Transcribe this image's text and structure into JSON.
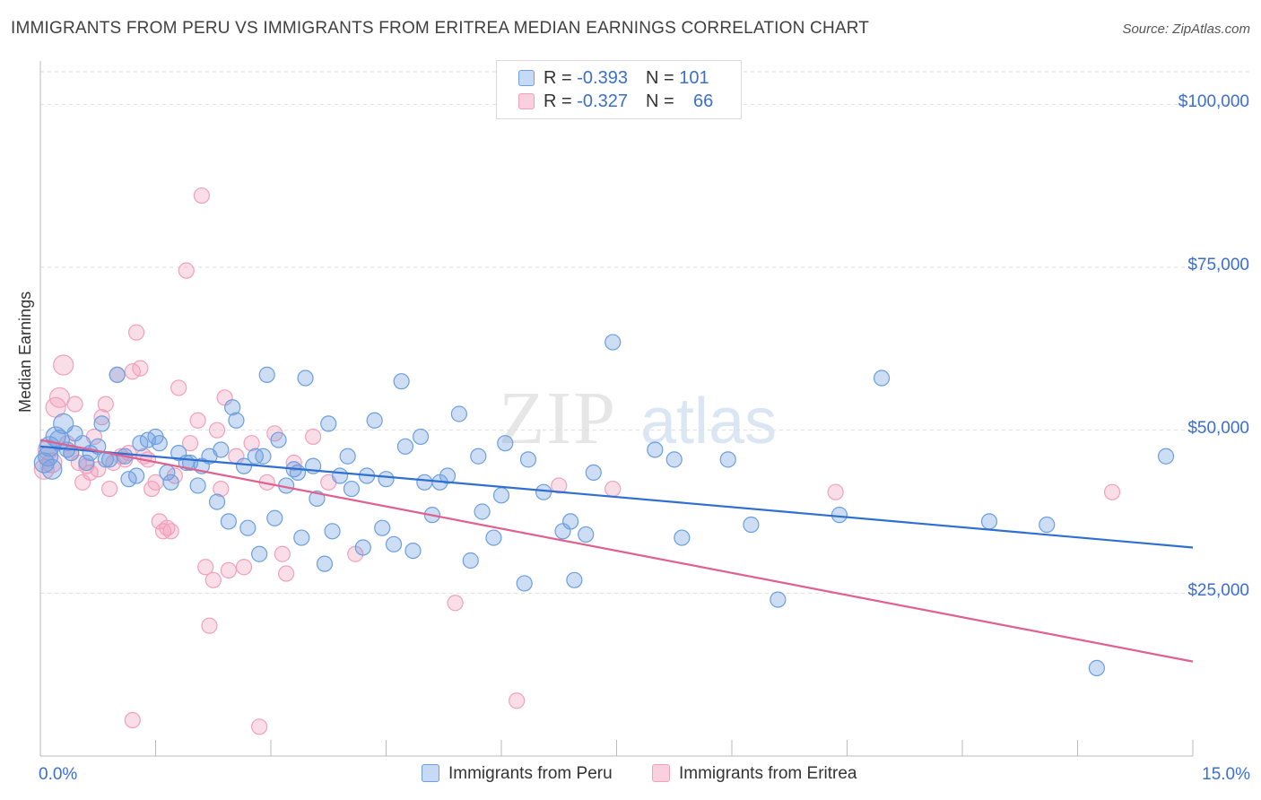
{
  "title": "IMMIGRANTS FROM PERU VS IMMIGRANTS FROM ERITREA MEDIAN EARNINGS CORRELATION CHART",
  "source": "Source: ZipAtlas.com",
  "watermark": "ZIPatlas",
  "legend": {
    "rows": [
      {
        "r_label": "R = ",
        "r_value": "-0.393",
        "n_label": "N = ",
        "n_value": "101"
      },
      {
        "r_label": "R = ",
        "r_value": "-0.327",
        "n_label": "N = ",
        "n_value": "66"
      }
    ]
  },
  "chart_data": {
    "type": "scatter",
    "title": "IMMIGRANTS FROM PERU VS IMMIGRANTS FROM ERITREA MEDIAN EARNINGS CORRELATION CHART",
    "xlabel": "",
    "ylabel": "Median Earnings",
    "xlim": [
      0,
      15
    ],
    "ylim": [
      0,
      105000
    ],
    "x_tick_labels": [
      "0.0%",
      "15.0%"
    ],
    "y_ticks": [
      25000,
      50000,
      75000,
      100000
    ],
    "y_tick_labels": [
      "$25,000",
      "$50,000",
      "$75,000",
      "$100,000"
    ],
    "grid": "horizontal dashed",
    "legend_position": "top-center",
    "colors": {
      "peru": "#6c9fe0",
      "eritrea": "#f1a0ba",
      "peru_line": "#2e6fd1",
      "eritrea_line": "#e0608f"
    },
    "series": [
      {
        "name": "Immigrants from Peru",
        "r": -0.393,
        "n": 101,
        "trend": {
          "x": [
            0,
            15
          ],
          "y": [
            47500,
            32000
          ]
        },
        "points": [
          [
            0.1,
            46000
          ],
          [
            0.15,
            44000
          ],
          [
            0.2,
            49000
          ],
          [
            0.3,
            51000
          ],
          [
            0.35,
            47000
          ],
          [
            0.45,
            49500
          ],
          [
            0.55,
            48000
          ],
          [
            0.65,
            46500
          ],
          [
            0.75,
            47500
          ],
          [
            0.8,
            51000
          ],
          [
            0.9,
            45500
          ],
          [
            1.0,
            58500
          ],
          [
            1.1,
            46000
          ],
          [
            1.15,
            42500
          ],
          [
            1.25,
            43000
          ],
          [
            1.3,
            48000
          ],
          [
            1.4,
            48500
          ],
          [
            1.5,
            49000
          ],
          [
            1.55,
            48000
          ],
          [
            1.65,
            43500
          ],
          [
            1.7,
            42000
          ],
          [
            1.8,
            46500
          ],
          [
            1.9,
            45000
          ],
          [
            1.95,
            45000
          ],
          [
            2.05,
            41500
          ],
          [
            2.1,
            44500
          ],
          [
            2.2,
            46000
          ],
          [
            2.3,
            39000
          ],
          [
            2.35,
            47000
          ],
          [
            2.45,
            36000
          ],
          [
            2.5,
            53500
          ],
          [
            2.55,
            51500
          ],
          [
            2.65,
            44500
          ],
          [
            2.7,
            35000
          ],
          [
            2.8,
            46000
          ],
          [
            2.85,
            31000
          ],
          [
            2.9,
            46000
          ],
          [
            2.95,
            58500
          ],
          [
            3.05,
            36500
          ],
          [
            3.1,
            48500
          ],
          [
            3.2,
            41500
          ],
          [
            3.3,
            44000
          ],
          [
            3.35,
            43500
          ],
          [
            3.4,
            33500
          ],
          [
            3.45,
            58000
          ],
          [
            3.55,
            44500
          ],
          [
            3.6,
            39500
          ],
          [
            3.7,
            29500
          ],
          [
            3.75,
            51000
          ],
          [
            3.8,
            34500
          ],
          [
            3.9,
            43000
          ],
          [
            4.0,
            46000
          ],
          [
            4.05,
            41000
          ],
          [
            4.2,
            32000
          ],
          [
            4.25,
            43000
          ],
          [
            4.35,
            51500
          ],
          [
            4.45,
            35000
          ],
          [
            4.5,
            42500
          ],
          [
            4.6,
            32500
          ],
          [
            4.7,
            57500
          ],
          [
            4.75,
            47500
          ],
          [
            4.85,
            31500
          ],
          [
            4.95,
            49000
          ],
          [
            5.0,
            42000
          ],
          [
            5.1,
            37000
          ],
          [
            5.2,
            42000
          ],
          [
            5.3,
            43000
          ],
          [
            5.45,
            52500
          ],
          [
            5.6,
            30000
          ],
          [
            5.7,
            46000
          ],
          [
            5.75,
            37500
          ],
          [
            5.9,
            33500
          ],
          [
            6.0,
            40000
          ],
          [
            6.05,
            48000
          ],
          [
            6.3,
            26500
          ],
          [
            6.35,
            45500
          ],
          [
            6.55,
            40500
          ],
          [
            6.8,
            34500
          ],
          [
            6.9,
            36000
          ],
          [
            6.95,
            27000
          ],
          [
            7.1,
            34000
          ],
          [
            7.2,
            43500
          ],
          [
            7.45,
            63500
          ],
          [
            8.0,
            47000
          ],
          [
            8.25,
            45500
          ],
          [
            8.35,
            33500
          ],
          [
            8.95,
            45500
          ],
          [
            9.25,
            35500
          ],
          [
            9.6,
            24000
          ],
          [
            10.4,
            37000
          ],
          [
            10.95,
            58000
          ],
          [
            12.35,
            36000
          ],
          [
            13.1,
            35500
          ],
          [
            13.75,
            13500
          ],
          [
            14.65,
            46000
          ],
          [
            0.05,
            45000
          ],
          [
            0.12,
            47500
          ],
          [
            0.25,
            48500
          ],
          [
            0.4,
            46500
          ],
          [
            0.6,
            45000
          ],
          [
            0.85,
            45500
          ]
        ]
      },
      {
        "name": "Immigrants from Eritrea",
        "r": -0.327,
        "n": 66,
        "trend": {
          "x": [
            0,
            15
          ],
          "y": [
            48500,
            14500
          ]
        },
        "points": [
          [
            0.05,
            44000
          ],
          [
            0.1,
            47000
          ],
          [
            0.15,
            45000
          ],
          [
            0.2,
            53500
          ],
          [
            0.25,
            55000
          ],
          [
            0.3,
            60000
          ],
          [
            0.35,
            48000
          ],
          [
            0.4,
            46500
          ],
          [
            0.45,
            54000
          ],
          [
            0.5,
            45000
          ],
          [
            0.55,
            42000
          ],
          [
            0.6,
            44500
          ],
          [
            0.65,
            43500
          ],
          [
            0.7,
            49000
          ],
          [
            0.75,
            44000
          ],
          [
            0.8,
            52000
          ],
          [
            0.85,
            54000
          ],
          [
            0.9,
            41000
          ],
          [
            0.95,
            45000
          ],
          [
            1.0,
            58500
          ],
          [
            1.05,
            46000
          ],
          [
            1.1,
            45500
          ],
          [
            1.15,
            46500
          ],
          [
            1.2,
            59000
          ],
          [
            1.25,
            65000
          ],
          [
            1.3,
            59500
          ],
          [
            1.35,
            46000
          ],
          [
            1.4,
            45500
          ],
          [
            1.45,
            41000
          ],
          [
            1.5,
            42000
          ],
          [
            1.55,
            36000
          ],
          [
            1.6,
            34500
          ],
          [
            1.65,
            35000
          ],
          [
            1.7,
            34500
          ],
          [
            1.75,
            43000
          ],
          [
            1.8,
            56500
          ],
          [
            1.9,
            74500
          ],
          [
            1.95,
            48000
          ],
          [
            2.05,
            51500
          ],
          [
            2.1,
            86000
          ],
          [
            2.15,
            29000
          ],
          [
            2.2,
            20000
          ],
          [
            2.25,
            27000
          ],
          [
            2.3,
            50000
          ],
          [
            2.35,
            41000
          ],
          [
            2.4,
            55000
          ],
          [
            2.45,
            28500
          ],
          [
            2.55,
            46000
          ],
          [
            2.65,
            29000
          ],
          [
            2.75,
            48000
          ],
          [
            2.85,
            4500
          ],
          [
            2.95,
            42000
          ],
          [
            3.05,
            49500
          ],
          [
            3.15,
            31000
          ],
          [
            3.2,
            28000
          ],
          [
            3.3,
            45000
          ],
          [
            3.55,
            49000
          ],
          [
            3.75,
            42000
          ],
          [
            4.1,
            31000
          ],
          [
            5.4,
            23500
          ],
          [
            6.2,
            8500
          ],
          [
            6.75,
            41500
          ],
          [
            7.45,
            41000
          ],
          [
            10.35,
            40500
          ],
          [
            13.95,
            40500
          ],
          [
            1.2,
            5500
          ]
        ]
      }
    ]
  },
  "bottom_legend": [
    "Immigrants from Peru",
    "Immigrants from Eritrea"
  ]
}
